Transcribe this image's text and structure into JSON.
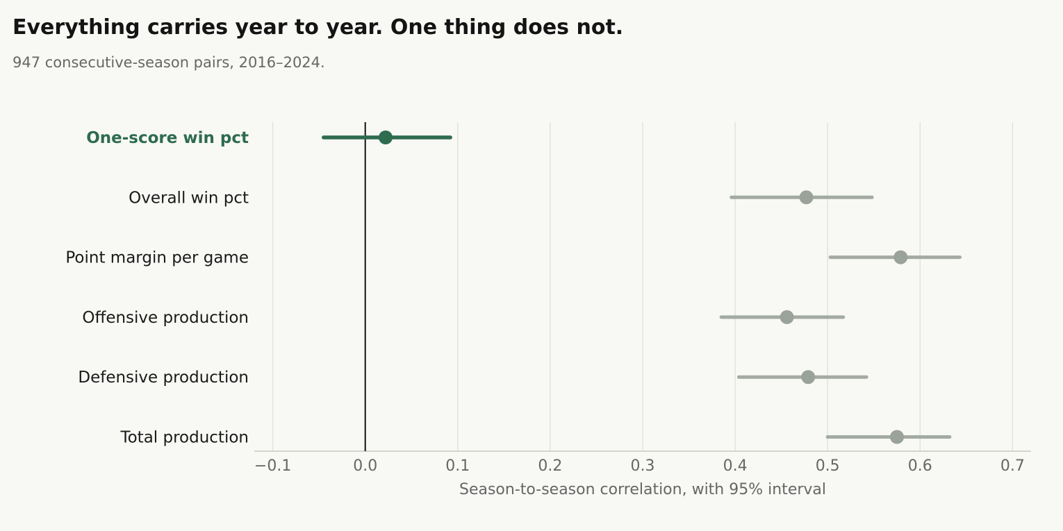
{
  "title": "Everything carries year to year. One thing does not.",
  "subtitle": "947 consecutive-season pairs, 2016–2024.",
  "colors": {
    "highlight": "#2e6b4f",
    "muted": "#a3aba3",
    "muted_dot": "#9aa29a",
    "grid": "#e2e2dd",
    "zero_line": "#111111",
    "axis": "#c8c8c2"
  },
  "chart_data": {
    "type": "dot-interval",
    "title": "Everything carries year to year. One thing does not.",
    "subtitle": "947 consecutive-season pairs, 2016–2024.",
    "xlabel": "Season-to-season correlation, with 95% interval",
    "xlim": [
      -0.12,
      0.72
    ],
    "x_ticks": [
      -0.1,
      0.0,
      0.1,
      0.2,
      0.3,
      0.4,
      0.5,
      0.6,
      0.7
    ],
    "x_tick_labels": [
      "−0.1",
      "0.0",
      "0.1",
      "0.2",
      "0.3",
      "0.4",
      "0.5",
      "0.6",
      "0.7"
    ],
    "grid": "vertical",
    "reference_line": 0,
    "categories": [
      {
        "label": "One-score win pct",
        "estimate": 0.022,
        "lower": -0.045,
        "upper": 0.092,
        "highlight": true
      },
      {
        "label": "Overall win pct",
        "estimate": 0.477,
        "lower": 0.396,
        "upper": 0.548,
        "highlight": false
      },
      {
        "label": "Point margin per game",
        "estimate": 0.579,
        "lower": 0.503,
        "upper": 0.643,
        "highlight": false
      },
      {
        "label": "Offensive production",
        "estimate": 0.456,
        "lower": 0.385,
        "upper": 0.517,
        "highlight": false
      },
      {
        "label": "Defensive production",
        "estimate": 0.479,
        "lower": 0.404,
        "upper": 0.542,
        "highlight": false
      },
      {
        "label": "Total production",
        "estimate": 0.575,
        "lower": 0.5,
        "upper": 0.632,
        "highlight": false
      }
    ]
  }
}
